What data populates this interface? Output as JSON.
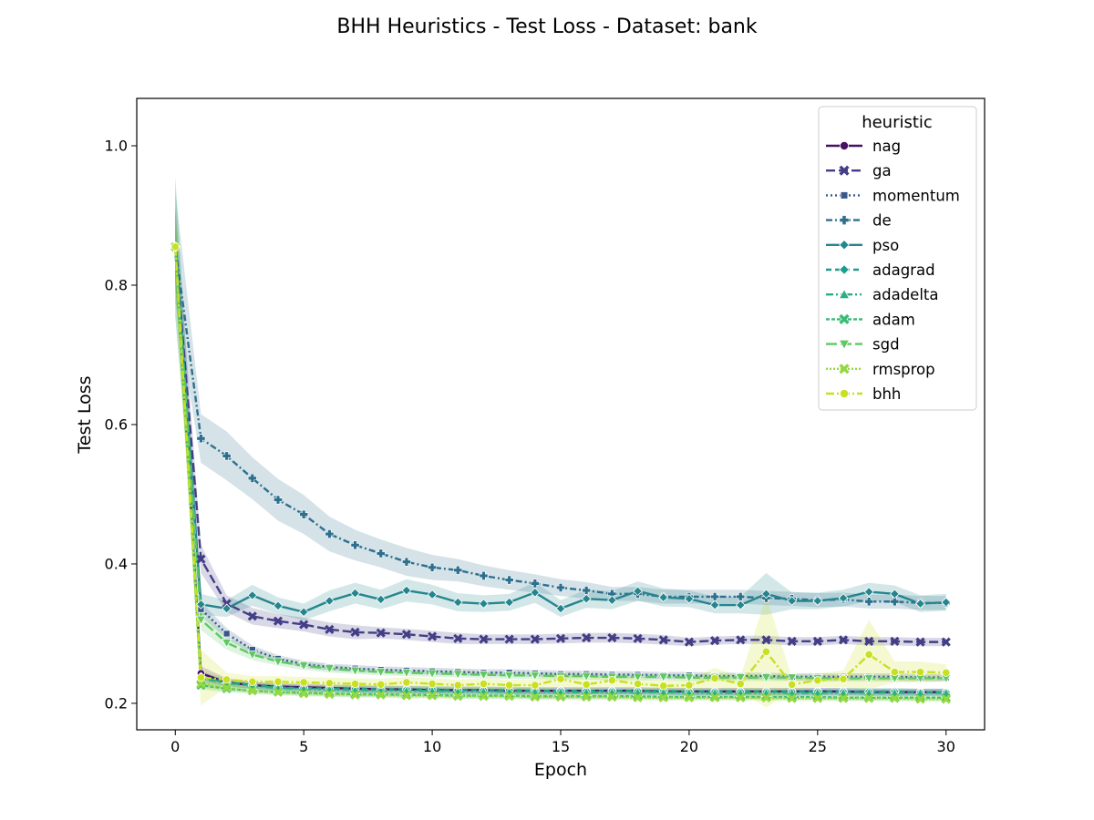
{
  "chart_data": {
    "type": "line",
    "title": "BHH Heuristics - Test Loss - Dataset: bank",
    "xlabel": "Epoch",
    "ylabel": "Test Loss",
    "xlim": [
      -1.5,
      31.5
    ],
    "ylim": [
      0.162,
      1.068
    ],
    "xticks": [
      0,
      5,
      10,
      15,
      20,
      25,
      30
    ],
    "yticks": [
      0.2,
      0.4,
      0.6,
      0.8,
      1.0
    ],
    "xtick_labels": [
      "0",
      "5",
      "10",
      "15",
      "20",
      "25",
      "30"
    ],
    "ytick_labels": [
      "0.2",
      "0.4",
      "0.6",
      "0.8",
      "1.0"
    ],
    "grid": false,
    "legend": {
      "title": "heuristic",
      "placement": "top-right"
    },
    "x": [
      0,
      1,
      2,
      3,
      4,
      5,
      6,
      7,
      8,
      9,
      10,
      11,
      12,
      13,
      14,
      15,
      16,
      17,
      18,
      19,
      20,
      21,
      22,
      23,
      24,
      25,
      26,
      27,
      28,
      29,
      30
    ],
    "series": [
      {
        "name": "nag",
        "color": "#471164",
        "marker": "circle",
        "dash": "solid",
        "values": [
          0.855,
          0.243,
          0.23,
          0.226,
          0.224,
          0.223,
          0.222,
          0.221,
          0.22,
          0.22,
          0.219,
          0.219,
          0.219,
          0.218,
          0.218,
          0.218,
          0.218,
          0.218,
          0.218,
          0.217,
          0.217,
          0.217,
          0.217,
          0.217,
          0.217,
          0.217,
          0.217,
          0.216,
          0.216,
          0.216,
          0.216
        ],
        "band": [
          0.03,
          0.01,
          0.006,
          0.005,
          0.005,
          0.005,
          0.005,
          0.005,
          0.005,
          0.005,
          0.005,
          0.005,
          0.005,
          0.005,
          0.005,
          0.005,
          0.005,
          0.005,
          0.005,
          0.005,
          0.005,
          0.005,
          0.005,
          0.005,
          0.005,
          0.005,
          0.005,
          0.005,
          0.005,
          0.005,
          0.005
        ]
      },
      {
        "name": "ga",
        "color": "#433e85",
        "marker": "x",
        "dash": "10,4",
        "values": [
          0.855,
          0.407,
          0.343,
          0.325,
          0.318,
          0.313,
          0.306,
          0.302,
          0.301,
          0.299,
          0.296,
          0.293,
          0.292,
          0.292,
          0.292,
          0.293,
          0.294,
          0.294,
          0.293,
          0.291,
          0.288,
          0.29,
          0.291,
          0.291,
          0.289,
          0.289,
          0.291,
          0.289,
          0.289,
          0.288,
          0.288
        ],
        "band": [
          0.06,
          0.02,
          0.012,
          0.012,
          0.01,
          0.01,
          0.01,
          0.01,
          0.008,
          0.008,
          0.008,
          0.008,
          0.007,
          0.007,
          0.007,
          0.007,
          0.007,
          0.007,
          0.007,
          0.007,
          0.006,
          0.006,
          0.006,
          0.006,
          0.006,
          0.006,
          0.006,
          0.006,
          0.006,
          0.006,
          0.006
        ]
      },
      {
        "name": "momentum",
        "color": "#38588c",
        "marker": "square",
        "dash": "2,3",
        "values": [
          0.855,
          0.335,
          0.3,
          0.277,
          0.264,
          0.256,
          0.252,
          0.25,
          0.248,
          0.247,
          0.246,
          0.245,
          0.244,
          0.244,
          0.243,
          0.242,
          0.242,
          0.241,
          0.241,
          0.24,
          0.24,
          0.239,
          0.239,
          0.239,
          0.238,
          0.238,
          0.238,
          0.238,
          0.238,
          0.237,
          0.237
        ],
        "band": [
          0.05,
          0.01,
          0.008,
          0.006,
          0.005,
          0.005,
          0.005,
          0.005,
          0.005,
          0.005,
          0.005,
          0.005,
          0.005,
          0.005,
          0.005,
          0.005,
          0.005,
          0.005,
          0.005,
          0.005,
          0.005,
          0.005,
          0.005,
          0.005,
          0.005,
          0.005,
          0.005,
          0.005,
          0.005,
          0.005,
          0.005
        ]
      },
      {
        "name": "de",
        "color": "#2d708e",
        "marker": "plus",
        "dash": "7,3,2,3",
        "values": [
          0.855,
          0.58,
          0.555,
          0.523,
          0.492,
          0.471,
          0.443,
          0.427,
          0.415,
          0.403,
          0.395,
          0.391,
          0.383,
          0.377,
          0.372,
          0.366,
          0.362,
          0.357,
          0.357,
          0.353,
          0.353,
          0.353,
          0.353,
          0.351,
          0.35,
          0.348,
          0.349,
          0.346,
          0.346,
          0.344,
          0.344
        ],
        "band": [
          0.08,
          0.035,
          0.035,
          0.03,
          0.03,
          0.028,
          0.025,
          0.022,
          0.02,
          0.02,
          0.018,
          0.016,
          0.015,
          0.014,
          0.013,
          0.012,
          0.012,
          0.01,
          0.01,
          0.01,
          0.01,
          0.01,
          0.01,
          0.01,
          0.01,
          0.01,
          0.01,
          0.01,
          0.01,
          0.01,
          0.01
        ]
      },
      {
        "name": "pso",
        "color": "#25858e",
        "marker": "diamond",
        "dash": "solid",
        "values": [
          0.855,
          0.342,
          0.336,
          0.355,
          0.34,
          0.331,
          0.347,
          0.358,
          0.349,
          0.362,
          0.356,
          0.345,
          0.343,
          0.345,
          0.359,
          0.336,
          0.35,
          0.348,
          0.361,
          0.352,
          0.35,
          0.341,
          0.341,
          0.357,
          0.347,
          0.347,
          0.351,
          0.36,
          0.357,
          0.343,
          0.345
        ],
        "band": [
          0.1,
          0.015,
          0.012,
          0.015,
          0.012,
          0.012,
          0.015,
          0.015,
          0.014,
          0.016,
          0.014,
          0.013,
          0.012,
          0.012,
          0.015,
          0.012,
          0.013,
          0.013,
          0.014,
          0.013,
          0.012,
          0.012,
          0.012,
          0.03,
          0.012,
          0.012,
          0.012,
          0.013,
          0.012,
          0.012,
          0.012
        ]
      },
      {
        "name": "adagrad",
        "color": "#1e9b8a",
        "marker": "diamond",
        "dash": "6,4",
        "values": [
          0.855,
          0.238,
          0.23,
          0.226,
          0.223,
          0.222,
          0.221,
          0.221,
          0.22,
          0.22,
          0.22,
          0.219,
          0.219,
          0.219,
          0.218,
          0.218,
          0.218,
          0.218,
          0.218,
          0.218,
          0.217,
          0.217,
          0.217,
          0.217,
          0.217,
          0.217,
          0.217,
          0.217,
          0.217,
          0.216,
          0.216
        ],
        "band": [
          0.05,
          0.008,
          0.005,
          0.005,
          0.005,
          0.005,
          0.005,
          0.005,
          0.005,
          0.005,
          0.005,
          0.005,
          0.005,
          0.005,
          0.005,
          0.005,
          0.005,
          0.005,
          0.005,
          0.005,
          0.005,
          0.005,
          0.005,
          0.005,
          0.005,
          0.005,
          0.005,
          0.005,
          0.005,
          0.005,
          0.005
        ]
      },
      {
        "name": "adadelta",
        "color": "#2ab07f",
        "marker": "triangle-up",
        "dash": "8,3,2,3,2,3",
        "values": [
          0.855,
          0.236,
          0.229,
          0.225,
          0.222,
          0.221,
          0.22,
          0.219,
          0.219,
          0.218,
          0.218,
          0.217,
          0.217,
          0.217,
          0.217,
          0.216,
          0.216,
          0.216,
          0.216,
          0.216,
          0.215,
          0.215,
          0.215,
          0.215,
          0.215,
          0.215,
          0.215,
          0.215,
          0.215,
          0.215,
          0.215
        ],
        "band": [
          0.05,
          0.008,
          0.005,
          0.005,
          0.005,
          0.005,
          0.005,
          0.005,
          0.005,
          0.005,
          0.005,
          0.005,
          0.005,
          0.005,
          0.005,
          0.005,
          0.005,
          0.005,
          0.005,
          0.005,
          0.005,
          0.005,
          0.005,
          0.005,
          0.005,
          0.005,
          0.005,
          0.005,
          0.005,
          0.005,
          0.005
        ]
      },
      {
        "name": "adam",
        "color": "#3bbb75",
        "marker": "x",
        "dash": "4,2",
        "values": [
          0.855,
          0.226,
          0.221,
          0.218,
          0.216,
          0.215,
          0.214,
          0.213,
          0.213,
          0.212,
          0.212,
          0.211,
          0.211,
          0.211,
          0.21,
          0.21,
          0.21,
          0.21,
          0.21,
          0.209,
          0.209,
          0.209,
          0.209,
          0.209,
          0.209,
          0.209,
          0.208,
          0.208,
          0.208,
          0.208,
          0.208
        ],
        "band": [
          0.05,
          0.006,
          0.005,
          0.004,
          0.004,
          0.004,
          0.004,
          0.004,
          0.004,
          0.004,
          0.004,
          0.004,
          0.004,
          0.004,
          0.004,
          0.004,
          0.004,
          0.004,
          0.004,
          0.004,
          0.004,
          0.004,
          0.004,
          0.004,
          0.004,
          0.004,
          0.004,
          0.004,
          0.004,
          0.004,
          0.004
        ]
      },
      {
        "name": "sgd",
        "color": "#5ec962",
        "marker": "triangle-down",
        "dash": "12,4",
        "values": [
          0.855,
          0.32,
          0.287,
          0.27,
          0.26,
          0.254,
          0.25,
          0.247,
          0.245,
          0.244,
          0.243,
          0.242,
          0.241,
          0.24,
          0.24,
          0.239,
          0.239,
          0.238,
          0.238,
          0.238,
          0.237,
          0.237,
          0.237,
          0.237,
          0.237,
          0.236,
          0.236,
          0.236,
          0.236,
          0.236,
          0.236
        ],
        "band": [
          0.1,
          0.015,
          0.01,
          0.008,
          0.006,
          0.006,
          0.006,
          0.005,
          0.005,
          0.005,
          0.005,
          0.005,
          0.005,
          0.005,
          0.005,
          0.005,
          0.005,
          0.005,
          0.005,
          0.005,
          0.005,
          0.005,
          0.005,
          0.005,
          0.005,
          0.005,
          0.005,
          0.005,
          0.005,
          0.005,
          0.005
        ]
      },
      {
        "name": "rmsprop",
        "color": "#95d840",
        "marker": "x",
        "dash": "2,2",
        "values": [
          0.855,
          0.228,
          0.222,
          0.218,
          0.216,
          0.214,
          0.213,
          0.212,
          0.212,
          0.211,
          0.211,
          0.21,
          0.21,
          0.21,
          0.209,
          0.209,
          0.209,
          0.209,
          0.208,
          0.208,
          0.208,
          0.208,
          0.208,
          0.208,
          0.207,
          0.207,
          0.207,
          0.207,
          0.207,
          0.206,
          0.206
        ],
        "band": [
          0.05,
          0.006,
          0.004,
          0.004,
          0.004,
          0.004,
          0.004,
          0.004,
          0.004,
          0.004,
          0.004,
          0.004,
          0.004,
          0.004,
          0.004,
          0.004,
          0.004,
          0.004,
          0.004,
          0.004,
          0.004,
          0.004,
          0.004,
          0.004,
          0.004,
          0.004,
          0.004,
          0.004,
          0.004,
          0.004,
          0.004
        ]
      },
      {
        "name": "bhh",
        "color": "#c8e020",
        "marker": "circle",
        "dash": "9,3,2,3",
        "values": [
          0.855,
          0.237,
          0.234,
          0.231,
          0.231,
          0.23,
          0.229,
          0.228,
          0.227,
          0.23,
          0.228,
          0.226,
          0.228,
          0.226,
          0.226,
          0.235,
          0.227,
          0.233,
          0.228,
          0.225,
          0.226,
          0.236,
          0.228,
          0.274,
          0.227,
          0.233,
          0.235,
          0.27,
          0.245,
          0.245,
          0.244
        ],
        "band": [
          0.06,
          0.04,
          0.01,
          0.008,
          0.008,
          0.008,
          0.008,
          0.008,
          0.008,
          0.008,
          0.008,
          0.008,
          0.008,
          0.008,
          0.008,
          0.012,
          0.008,
          0.01,
          0.008,
          0.008,
          0.008,
          0.015,
          0.01,
          0.08,
          0.01,
          0.01,
          0.012,
          0.05,
          0.015,
          0.015,
          0.012
        ]
      }
    ]
  }
}
